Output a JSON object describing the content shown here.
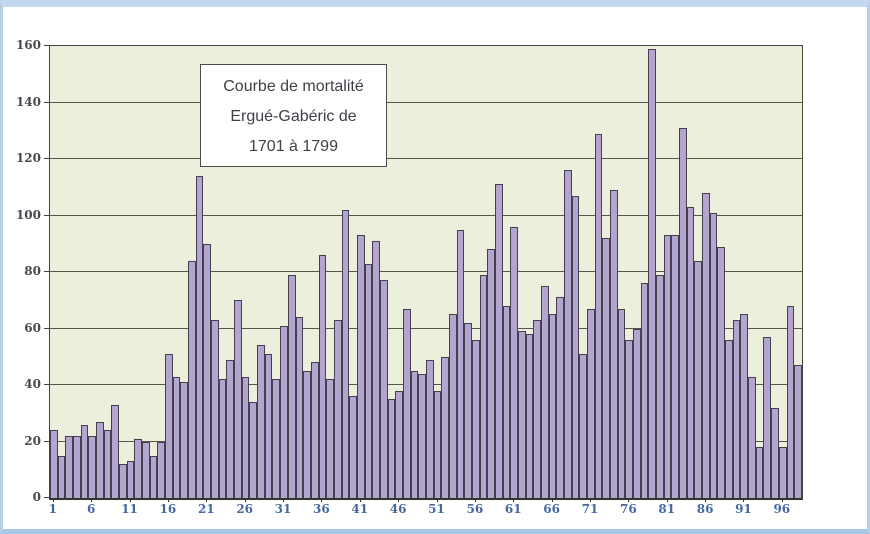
{
  "title_box": {
    "lines": [
      "Courbe de mortalité",
      "Ergué-Gabéric  de",
      "1701 à 1799"
    ]
  },
  "colors": {
    "bar_fill": "#b3a5ce",
    "bar_border": "#454051",
    "plot_background": "#ecefdc",
    "gridline": "#54564b",
    "x_label": "#44689e",
    "y_label": "#4c4650",
    "frame_border": "#b7d0ea"
  },
  "chart_data": {
    "type": "bar",
    "title": "Courbe de mortalité Ergué-Gabéric de 1701 à 1799",
    "xlabel": "",
    "ylabel": "",
    "ylim": [
      0,
      160
    ],
    "y_ticks": [
      0,
      20,
      40,
      60,
      80,
      100,
      120,
      140,
      160
    ],
    "x_tick_years": [
      1,
      6,
      11,
      16,
      21,
      26,
      31,
      36,
      41,
      46,
      51,
      56,
      61,
      66,
      71,
      76,
      81,
      86,
      91,
      96
    ],
    "x_tick_labels": [
      "1",
      "6",
      "11",
      "16",
      "21",
      "26",
      "31",
      "36",
      "41",
      "46",
      "51",
      "56",
      "61",
      "66",
      "71",
      "76",
      "81",
      "86",
      "91",
      "96"
    ],
    "grid": true,
    "legend": "none",
    "categories": [
      1,
      2,
      3,
      4,
      5,
      6,
      7,
      8,
      9,
      10,
      11,
      12,
      13,
      14,
      15,
      16,
      17,
      18,
      19,
      20,
      21,
      22,
      23,
      24,
      25,
      26,
      27,
      28,
      29,
      30,
      31,
      32,
      33,
      34,
      35,
      36,
      37,
      38,
      39,
      40,
      41,
      42,
      43,
      44,
      45,
      46,
      47,
      48,
      49,
      50,
      51,
      52,
      53,
      54,
      55,
      56,
      57,
      58,
      59,
      60,
      61,
      62,
      63,
      64,
      65,
      66,
      67,
      68,
      69,
      70,
      71,
      72,
      73,
      74,
      75,
      76,
      77,
      78,
      79,
      80,
      81,
      82,
      83,
      84,
      85,
      86,
      87,
      88,
      89,
      90,
      91,
      92,
      93,
      94,
      95,
      96,
      97,
      98
    ],
    "values": [
      24,
      15,
      22,
      22,
      26,
      22,
      27,
      24,
      33,
      12,
      13,
      21,
      20,
      15,
      20,
      51,
      43,
      41,
      84,
      114,
      90,
      63,
      42,
      49,
      70,
      43,
      34,
      54,
      51,
      42,
      61,
      79,
      64,
      45,
      48,
      86,
      42,
      63,
      102,
      36,
      93,
      83,
      91,
      77,
      35,
      38,
      67,
      45,
      44,
      49,
      38,
      50,
      65,
      95,
      62,
      56,
      79,
      88,
      111,
      68,
      96,
      59,
      58,
      63,
      75,
      65,
      71,
      116,
      107,
      51,
      67,
      129,
      92,
      109,
      67,
      56,
      60,
      76,
      159,
      79,
      93,
      93,
      131,
      103,
      84,
      108,
      101,
      89,
      56,
      63,
      65,
      43,
      18,
      57,
      32,
      18,
      68,
      47
    ]
  }
}
